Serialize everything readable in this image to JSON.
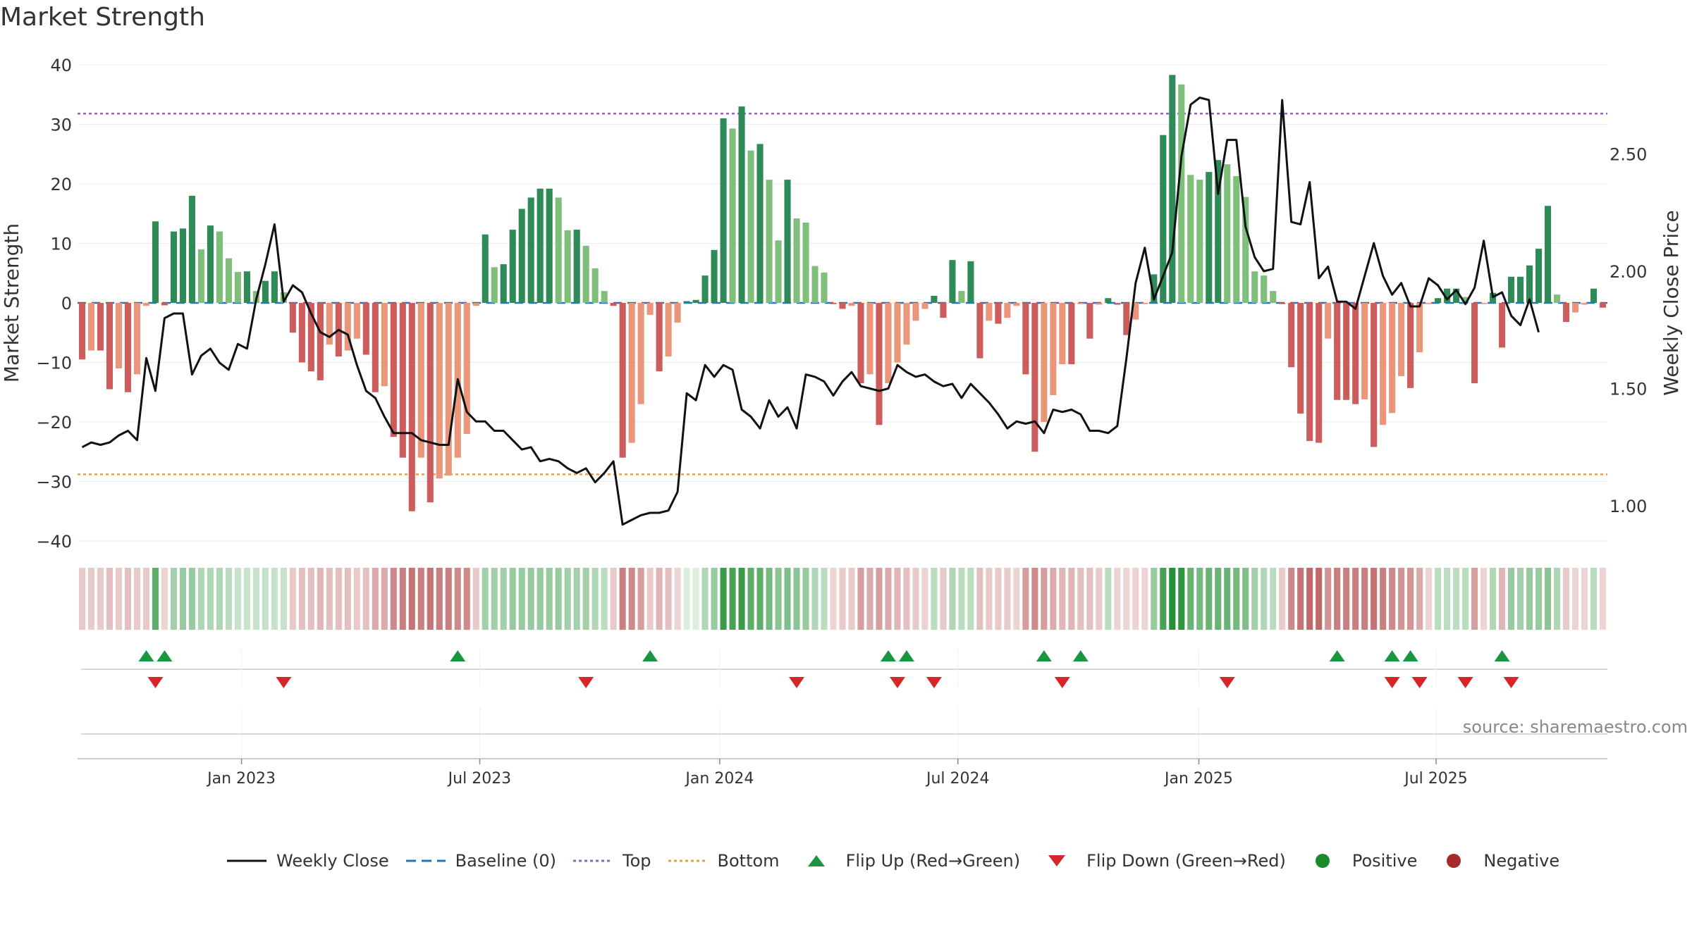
{
  "title": "Market Strength",
  "source": "source: sharemaestro.com",
  "colors": {
    "pos_strong": "#2e8b57",
    "pos_light": "#7fbf7b",
    "neg_strong": "#cd5c5c",
    "neg_light": "#e9967a",
    "close_line": "#111111",
    "baseline": "#1f77b4",
    "top_line": "#9467bd",
    "bottom_line": "#e6a04a",
    "flip_up": "#1a9641",
    "flip_down": "#d62728",
    "positive_dot": "#1a8a2a",
    "negative_dot": "#a52a2a"
  },
  "chart_data": {
    "type": "bar+line",
    "title": "Market Strength",
    "ylabel": "Market Strength",
    "y2label": "Weekly Close Price",
    "ylim": [
      -40,
      40
    ],
    "y2lim": [
      0.85,
      2.88
    ],
    "yticks": [
      "40",
      "30",
      "20",
      "10",
      "0",
      "−10",
      "−20",
      "−30",
      "−40"
    ],
    "ytick_values": [
      40,
      30,
      20,
      10,
      0,
      -10,
      -20,
      -30,
      -40
    ],
    "y2ticks": [
      "2.50",
      "2.00",
      "1.50",
      "1.00"
    ],
    "y2tick_values": [
      2.5,
      2.0,
      1.5,
      1.0
    ],
    "xticks": [
      "Jan 2023",
      "Jul 2023",
      "Jan 2024",
      "Jul 2024",
      "Jan 2025",
      "Jul 2025"
    ],
    "xtick_weeks": [
      17.4,
      43.4,
      69.6,
      95.6,
      121.9,
      147.8
    ],
    "reference_lines": {
      "top": 31.8,
      "bottom": -28.8,
      "baseline": 0
    },
    "strength": [
      -9.5,
      -8,
      -8,
      -14.5,
      -11,
      -15,
      -12,
      -0.5,
      13.7,
      -0.4,
      12,
      12.5,
      18,
      9,
      13,
      12,
      7.5,
      5.2,
      5.3,
      2,
      3.7,
      5.3,
      1.8,
      -5,
      -10,
      -11.5,
      -13,
      -7,
      -9,
      -8,
      -6,
      -8.7,
      -15,
      -14,
      -22.5,
      -26,
      -35,
      -26,
      -33.5,
      -29.5,
      -29,
      -26,
      -22,
      -0.5,
      11.5,
      6,
      6.5,
      12.3,
      15.8,
      17.7,
      19.2,
      19.2,
      17.7,
      12.2,
      12.3,
      9.6,
      5.8,
      2,
      -0.5,
      -26,
      -23.5,
      -17,
      -2,
      -11.5,
      -9,
      -3.3,
      0.3,
      0.5,
      4.6,
      8.9,
      31,
      29.3,
      33,
      25.6,
      26.7,
      20.7,
      10.5,
      20.7,
      14.2,
      13.5,
      6.2,
      5.1,
      -0.2,
      -1,
      -0.5,
      -13.5,
      -12,
      -20.5,
      -13.5,
      -10,
      -7,
      -3,
      -1,
      1.2,
      -2.5,
      7.2,
      2,
      7,
      -9.3,
      -3,
      -3.5,
      -2.5,
      -0.5,
      -12,
      -25,
      -20,
      -15.5,
      -10.3,
      -10.3,
      -0.2,
      -6,
      -0.3,
      0.8,
      -0.3,
      -5.4,
      -2.8,
      -0.2,
      4.8,
      28.2,
      38.3,
      36.7,
      21.5,
      20.7,
      22,
      24,
      23.3,
      21.3,
      17.8,
      5.3,
      4.6,
      2,
      -0.2,
      -10.8,
      -18.6,
      -23.2,
      -23.5,
      -6,
      -16.3,
      -16.3,
      -17,
      -16.2,
      -24.2,
      -20.5,
      -18.5,
      -12.3,
      -14.3,
      -8.3,
      -0.2,
      0.8,
      2.4,
      2.4,
      1,
      -13.5,
      -0.2,
      1.7,
      -7.5,
      4.4,
      4.4,
      6.3,
      9.1,
      16.3,
      1.4,
      -3.2,
      -1.6,
      -0.3,
      2.4,
      -0.8
    ],
    "close": [
      1.25,
      1.27,
      1.26,
      1.27,
      1.3,
      1.32,
      1.28,
      1.63,
      1.49,
      1.8,
      1.82,
      1.82,
      1.56,
      1.64,
      1.67,
      1.61,
      1.58,
      1.69,
      1.67,
      1.88,
      2.03,
      2.2,
      1.87,
      1.94,
      1.91,
      1.82,
      1.74,
      1.72,
      1.75,
      1.73,
      1.6,
      1.49,
      1.46,
      1.38,
      1.31,
      1.31,
      1.31,
      1.28,
      1.27,
      1.26,
      1.26,
      1.54,
      1.4,
      1.36,
      1.36,
      1.32,
      1.32,
      1.28,
      1.24,
      1.25,
      1.19,
      1.2,
      1.19,
      1.16,
      1.14,
      1.16,
      1.1,
      1.14,
      1.19,
      0.92,
      0.94,
      0.96,
      0.97,
      0.97,
      0.98,
      1.06,
      1.48,
      1.45,
      1.6,
      1.55,
      1.6,
      1.58,
      1.41,
      1.38,
      1.33,
      1.45,
      1.38,
      1.42,
      1.33,
      1.56,
      1.55,
      1.53,
      1.47,
      1.53,
      1.57,
      1.51,
      1.5,
      1.49,
      1.5,
      1.6,
      1.57,
      1.55,
      1.56,
      1.53,
      1.51,
      1.52,
      1.46,
      1.52,
      1.48,
      1.44,
      1.39,
      1.33,
      1.36,
      1.35,
      1.36,
      1.31,
      1.41,
      1.4,
      1.41,
      1.39,
      1.32,
      1.32,
      1.31,
      1.34,
      1.63,
      1.95,
      2.1,
      1.88,
      1.98,
      2.08,
      2.49,
      2.71,
      2.74,
      2.73,
      2.33,
      2.56,
      2.56,
      2.19,
      2.06,
      2.0,
      2.01,
      2.73,
      2.21,
      2.2,
      2.38,
      1.97,
      2.02,
      1.87,
      1.87,
      1.84,
      1.98,
      2.12,
      1.98,
      1.9,
      1.95,
      1.85,
      1.85,
      1.97,
      1.94,
      1.88,
      1.92,
      1.86,
      1.93,
      2.13,
      1.89,
      1.91,
      1.81,
      1.77,
      1.88,
      1.74
    ],
    "strip_intensity": [
      0.25,
      0.25,
      0.25,
      0.3,
      0.25,
      0.3,
      0.25,
      0.25,
      0.7,
      0.2,
      0.4,
      0.45,
      0.45,
      0.35,
      0.35,
      0.35,
      0.3,
      0.25,
      0.25,
      0.25,
      0.25,
      0.25,
      0.25,
      0.25,
      0.3,
      0.3,
      0.35,
      0.3,
      0.3,
      0.3,
      0.25,
      0.3,
      0.4,
      0.4,
      0.55,
      0.6,
      0.65,
      0.6,
      0.65,
      0.6,
      0.6,
      0.55,
      0.55,
      0.25,
      0.4,
      0.4,
      0.4,
      0.45,
      0.45,
      0.45,
      0.45,
      0.45,
      0.45,
      0.4,
      0.4,
      0.4,
      0.35,
      0.3,
      0.25,
      0.6,
      0.55,
      0.45,
      0.25,
      0.35,
      0.3,
      0.2,
      0.15,
      0.15,
      0.35,
      0.45,
      0.85,
      0.8,
      0.85,
      0.7,
      0.7,
      0.6,
      0.5,
      0.55,
      0.5,
      0.45,
      0.35,
      0.3,
      0.2,
      0.25,
      0.25,
      0.45,
      0.4,
      0.45,
      0.4,
      0.35,
      0.3,
      0.25,
      0.2,
      0.3,
      0.25,
      0.35,
      0.3,
      0.3,
      0.3,
      0.25,
      0.25,
      0.25,
      0.2,
      0.45,
      0.55,
      0.45,
      0.4,
      0.35,
      0.35,
      0.3,
      0.3,
      0.25,
      0.3,
      0.2,
      0.2,
      0.2,
      0.2,
      0.45,
      0.8,
      0.95,
      0.9,
      0.65,
      0.6,
      0.65,
      0.65,
      0.65,
      0.6,
      0.55,
      0.4,
      0.35,
      0.3,
      0.25,
      0.55,
      0.65,
      0.7,
      0.7,
      0.5,
      0.6,
      0.6,
      0.6,
      0.6,
      0.65,
      0.6,
      0.55,
      0.5,
      0.5,
      0.4,
      0.2,
      0.3,
      0.3,
      0.3,
      0.3,
      0.45,
      0.2,
      0.35,
      0.35,
      0.45,
      0.4,
      0.45,
      0.45,
      0.5,
      0.35,
      0.25,
      0.2,
      0.2,
      0.3,
      0.2
    ],
    "flip_up_weeks": [
      7,
      9,
      41,
      62,
      88,
      90,
      105,
      109,
      137,
      143,
      145,
      155
    ],
    "flip_down_weeks": [
      8,
      22,
      55,
      78,
      89,
      93,
      107,
      125,
      143,
      146,
      151,
      156
    ]
  },
  "legend": {
    "weekly_close": "Weekly Close",
    "baseline": "Baseline (0)",
    "top": "Top",
    "bottom": "Bottom",
    "flip_up": "Flip Up (Red→Green)",
    "flip_down": "Flip Down (Green→Red)",
    "positive": "Positive",
    "negative": "Negative"
  }
}
